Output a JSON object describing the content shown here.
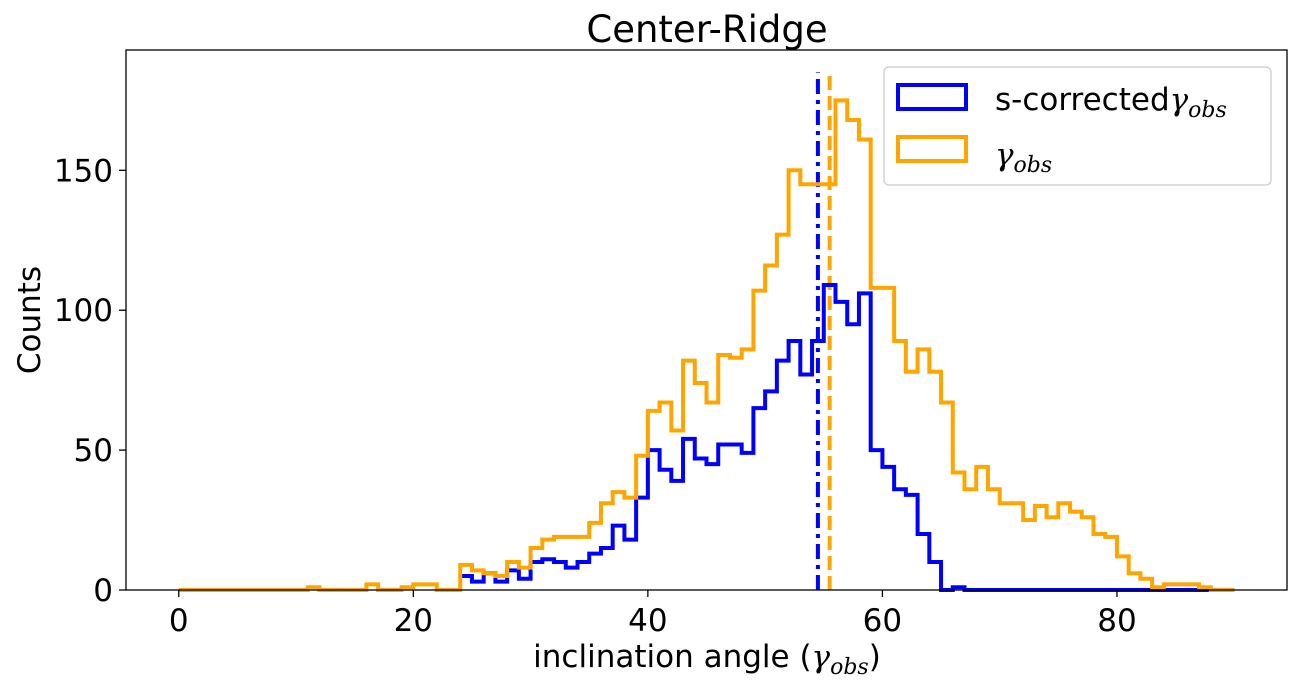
{
  "chart_data": {
    "type": "histogram-step",
    "title": "Center-Ridge",
    "xlabel": {
      "prefix": "inclination angle (",
      "symbol": "γ",
      "sub": "obs",
      "suffix": ")"
    },
    "ylabel": "Counts",
    "xlim": [
      -4.5,
      94.5
    ],
    "ylim": [
      0,
      193
    ],
    "xticks": [
      0,
      20,
      40,
      60,
      80
    ],
    "yticks": [
      0,
      50,
      100,
      150
    ],
    "bin_width": 1,
    "legend": {
      "position": "top-right",
      "entries": [
        {
          "label_prefix": "s-corrected",
          "symbol": "γ",
          "sub": "obs",
          "color": "#0000ff"
        },
        {
          "label_prefix": "",
          "symbol": "γ",
          "sub": "obs",
          "color": "#ffa500"
        }
      ]
    },
    "series": [
      {
        "name": "s-correctedγobs",
        "color": "#0000ff",
        "x_start": 24,
        "values": [
          5,
          3,
          6,
          3,
          7,
          4,
          10,
          11,
          10,
          8,
          10,
          13,
          15,
          23,
          18,
          33,
          50,
          43,
          39,
          54,
          47,
          45,
          52,
          52,
          49,
          65,
          71,
          82,
          89,
          77,
          89,
          109,
          103,
          95,
          106,
          50,
          44,
          36,
          34,
          20,
          10,
          0,
          1,
          0,
          0,
          0,
          0,
          0,
          0,
          0,
          0,
          0,
          0,
          0,
          0,
          0,
          0,
          0,
          0,
          0,
          0,
          0,
          0,
          0,
          0,
          0
        ]
      },
      {
        "name": "γobs",
        "color": "#ffa500",
        "x_start": 0,
        "values": [
          0,
          0,
          0,
          0,
          0,
          0,
          0,
          0,
          0,
          0,
          0,
          1,
          0,
          0,
          0,
          0,
          2,
          0,
          0,
          1,
          2,
          2,
          0,
          0,
          9,
          7,
          6,
          5,
          10,
          8,
          15,
          18,
          19,
          19,
          19,
          24,
          31,
          35,
          33,
          48,
          64,
          67,
          57,
          82,
          74,
          67,
          84,
          83,
          86,
          107,
          116,
          127,
          150,
          145,
          145,
          145,
          175,
          168,
          161,
          108,
          108,
          89,
          78,
          86,
          78,
          67,
          42,
          36,
          44,
          36,
          31,
          31,
          25,
          30,
          26,
          31,
          28,
          26,
          20,
          19,
          12,
          6,
          4,
          1,
          2,
          2,
          2,
          1,
          0,
          0
        ]
      }
    ],
    "vlines": [
      {
        "x": 54.5,
        "color": "#0000ff",
        "style": "dashdot"
      },
      {
        "x": 55.5,
        "color": "#ffa500",
        "style": "dashed"
      }
    ]
  }
}
